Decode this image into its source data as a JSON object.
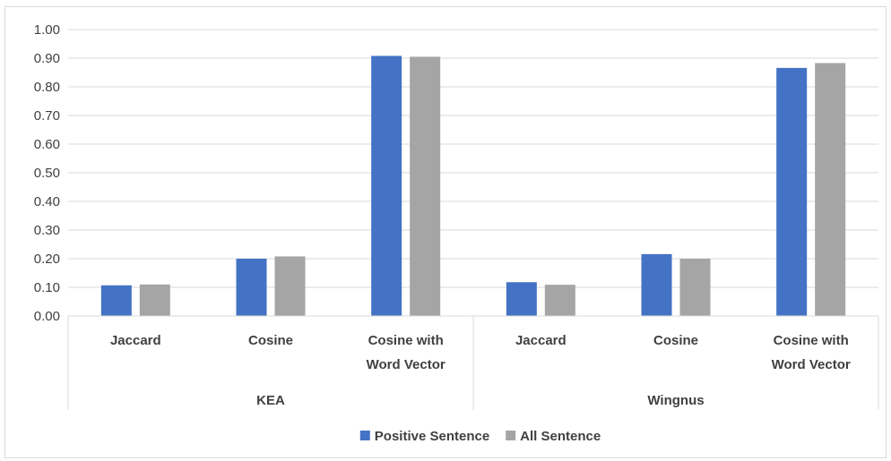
{
  "chart_data": {
    "type": "bar",
    "title": "",
    "xlabel": "",
    "ylabel": "",
    "ylim": [
      0,
      1.0
    ],
    "y_ticks": [
      "0.00",
      "0.10",
      "0.20",
      "0.30",
      "0.40",
      "0.50",
      "0.60",
      "0.70",
      "0.80",
      "0.90",
      "1.00"
    ],
    "grid": true,
    "legend_position": "bottom",
    "groups": [
      {
        "name": "KEA",
        "categories": [
          [
            "Jaccard"
          ],
          [
            "Cosine"
          ],
          [
            "Cosine with",
            "Word Vector"
          ]
        ]
      },
      {
        "name": "Wingnus",
        "categories": [
          [
            "Jaccard"
          ],
          [
            "Cosine"
          ],
          [
            "Cosine with",
            "Word Vector"
          ]
        ]
      }
    ],
    "categories": [
      "Jaccard",
      "Cosine",
      "Cosine with Word Vector",
      "Jaccard",
      "Cosine",
      "Cosine with Word Vector"
    ],
    "series": [
      {
        "name": "Positive Sentence",
        "color": "#4472c4",
        "values": [
          0.107,
          0.2,
          0.908,
          0.118,
          0.216,
          0.866
        ]
      },
      {
        "name": "All Sentence",
        "color": "#a5a5a5",
        "values": [
          0.11,
          0.208,
          0.905,
          0.109,
          0.2,
          0.883
        ]
      }
    ]
  }
}
